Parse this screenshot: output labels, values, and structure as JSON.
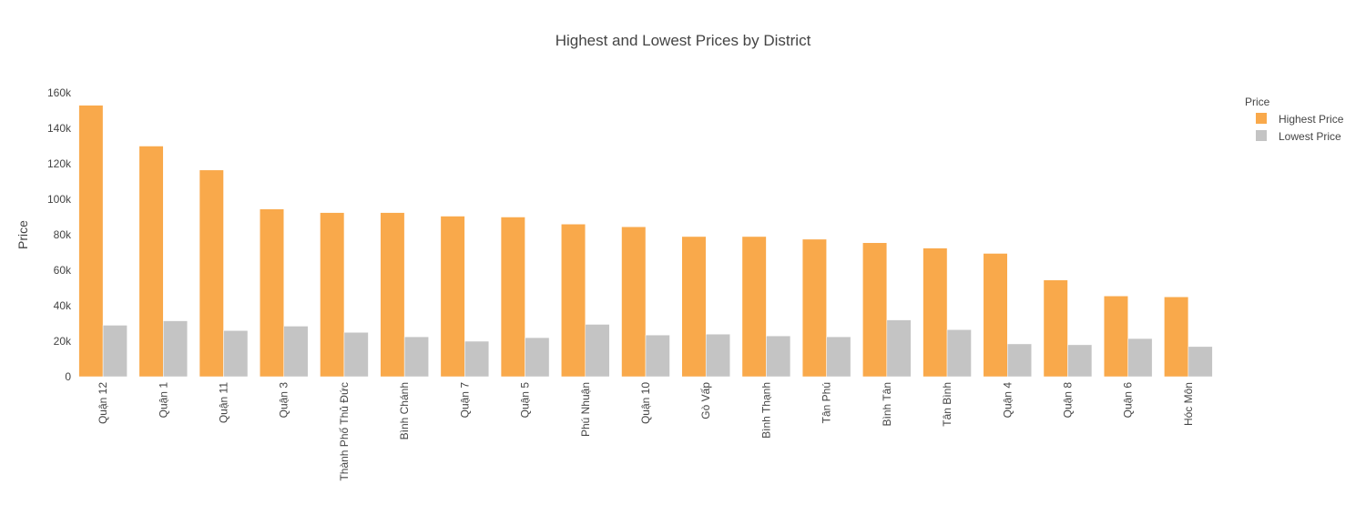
{
  "chart_data": {
    "type": "bar",
    "title": "Highest and Lowest Prices by District",
    "xlabel": "",
    "ylabel": "Price",
    "ylim": [
      0,
      160000
    ],
    "yticks": [
      0,
      20000,
      40000,
      60000,
      80000,
      100000,
      120000,
      140000,
      160000
    ],
    "ytick_labels": [
      "0",
      "20k",
      "40k",
      "60k",
      "80k",
      "100k",
      "120k",
      "140k",
      "160k"
    ],
    "grid": false,
    "legend": {
      "title": "Price",
      "position": "top-right"
    },
    "categories": [
      "Quận 12",
      "Quận 1",
      "Quận 11",
      "Quận 3",
      "Thành Phố Thủ Đức",
      "Bình Chánh",
      "Quận 7",
      "Quận 5",
      "Phú Nhuận",
      "Quận 10",
      "Gò Vấp",
      "Bình Thạnh",
      "Tân Phú",
      "Bình Tân",
      "Tân Bình",
      "Quận 4",
      "Quận 8",
      "Quận 6",
      "Hóc Môn"
    ],
    "series": [
      {
        "name": "Highest Price",
        "color": "#f9a94b",
        "values": [
          153000,
          130000,
          116500,
          94500,
          92500,
          92500,
          90500,
          90000,
          86000,
          84500,
          79000,
          79000,
          77500,
          75500,
          72500,
          69500,
          54500,
          45500,
          45000
        ]
      },
      {
        "name": "Lowest Price",
        "color": "#c4c4c4",
        "values": [
          29000,
          31500,
          26000,
          28500,
          25000,
          22500,
          20000,
          22000,
          29500,
          23500,
          24000,
          23000,
          22500,
          32000,
          26500,
          18500,
          18000,
          21500,
          17000
        ]
      }
    ]
  }
}
